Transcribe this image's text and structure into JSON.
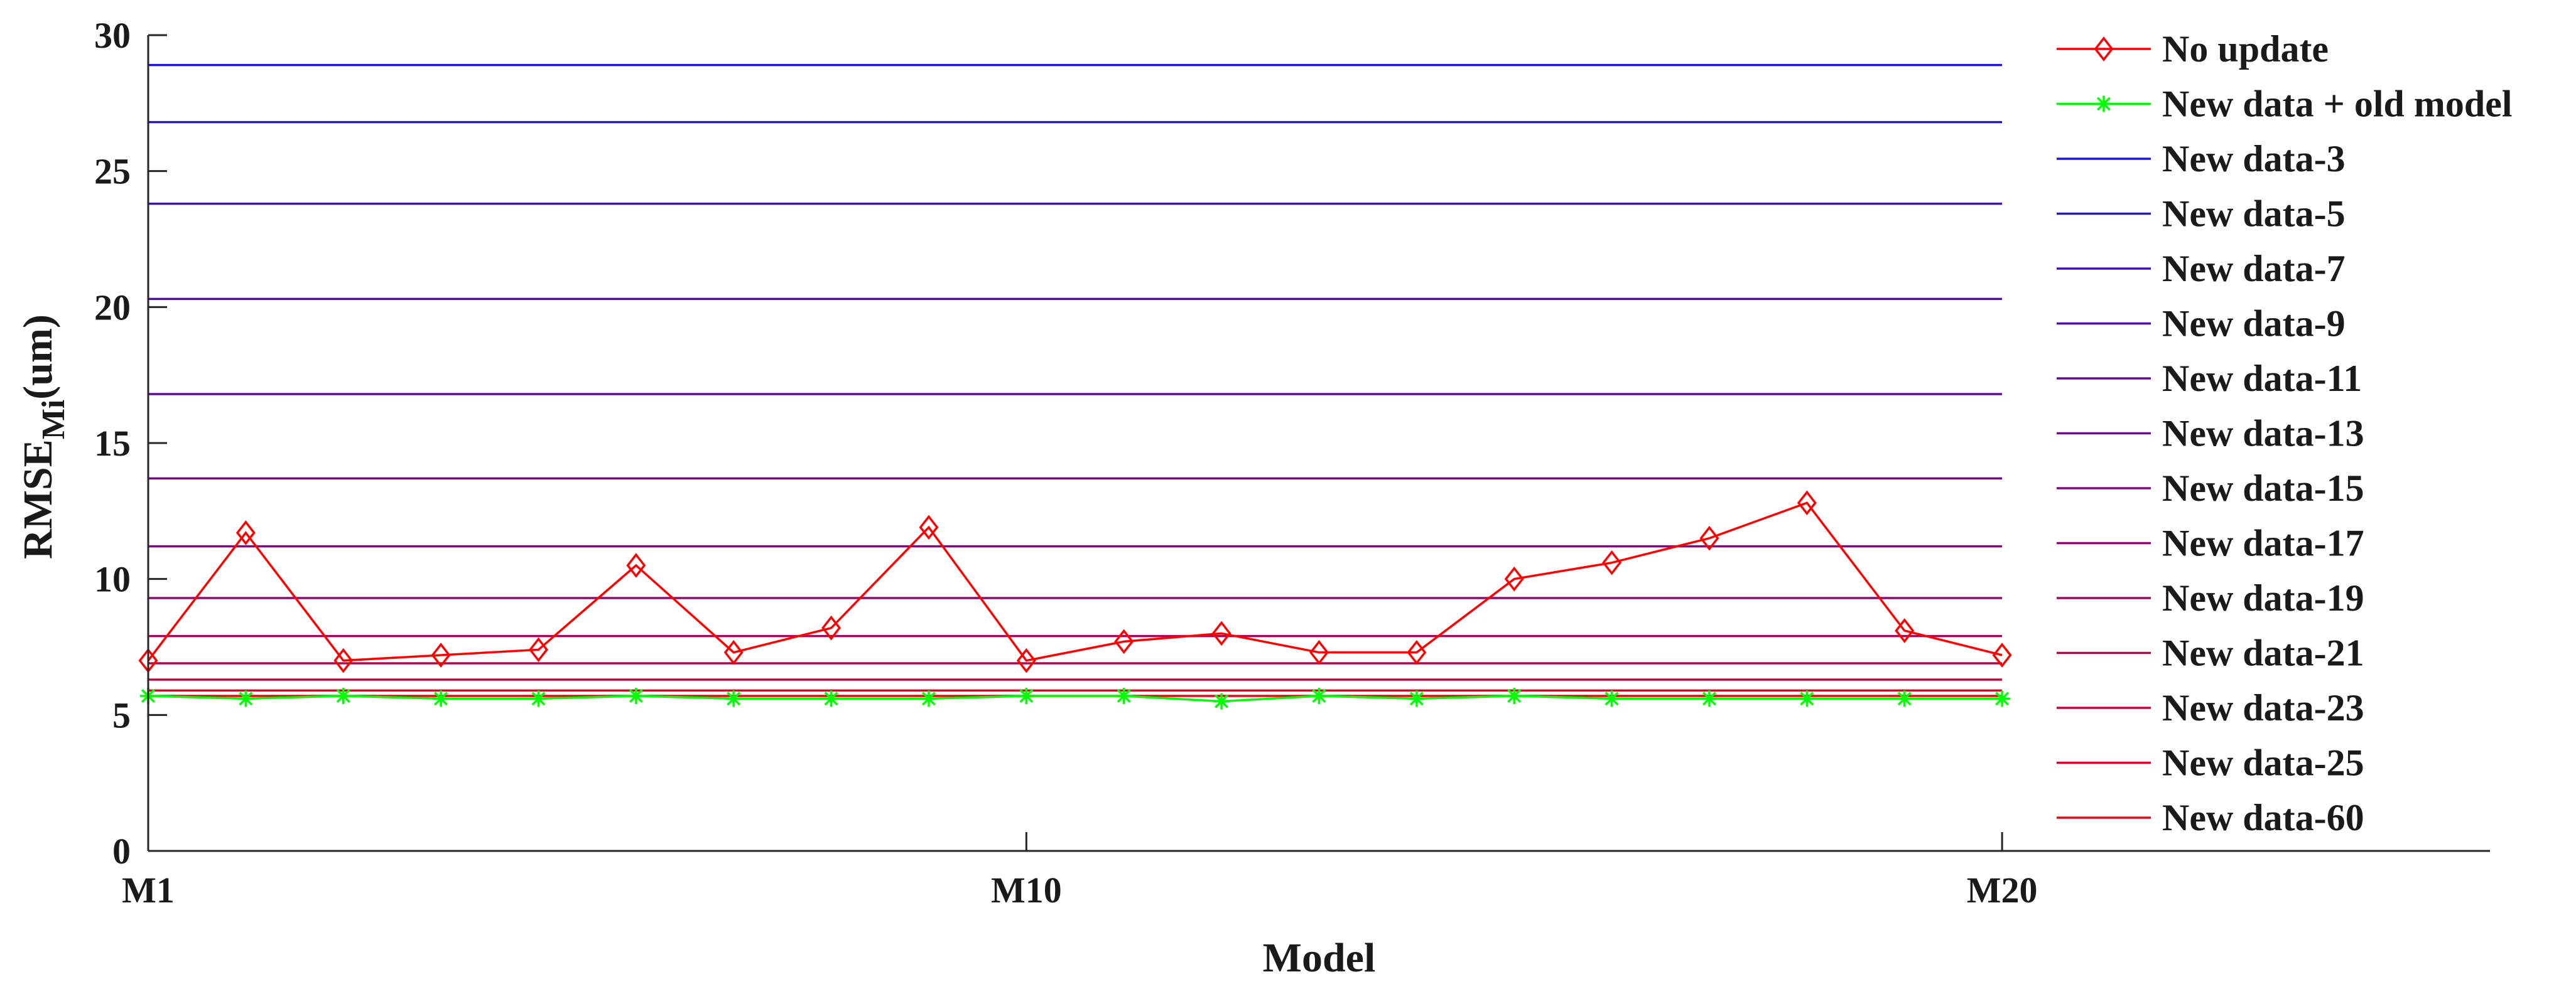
{
  "chart_data": {
    "type": "line",
    "xlabel": "Model",
    "ylabel": "RMSE",
    "ylabel_sub": "Mi",
    "ylabel_unit": "(um)",
    "xlim": [
      1,
      25
    ],
    "ylim": [
      0,
      30
    ],
    "x_ticks": [
      {
        "x": 1,
        "label": "M1"
      },
      {
        "x": 10,
        "label": "M10"
      },
      {
        "x": 20,
        "label": "M20"
      }
    ],
    "y_ticks": [
      0,
      5,
      10,
      15,
      20,
      25,
      30
    ],
    "x": [
      1,
      2,
      3,
      4,
      5,
      6,
      7,
      8,
      9,
      10,
      11,
      12,
      13,
      14,
      15,
      16,
      17,
      18,
      19,
      20
    ],
    "series": [
      {
        "name": "No update",
        "kind": "line-marker",
        "marker": "diamond",
        "color": "#ff0000",
        "values": [
          7.0,
          11.7,
          7.0,
          7.2,
          7.4,
          10.5,
          7.3,
          8.2,
          11.9,
          7.0,
          7.7,
          8.0,
          7.3,
          7.3,
          10.0,
          10.6,
          11.5,
          12.8,
          8.1,
          7.2
        ]
      },
      {
        "name": "New data + old model",
        "kind": "line-marker",
        "marker": "asterisk",
        "color": "#00ff00",
        "values": [
          5.7,
          5.6,
          5.7,
          5.6,
          5.6,
          5.7,
          5.6,
          5.6,
          5.6,
          5.7,
          5.7,
          5.5,
          5.7,
          5.6,
          5.7,
          5.6,
          5.6,
          5.6,
          5.6,
          5.6
        ]
      },
      {
        "name": "New data-3",
        "kind": "hline",
        "color": "#1a14d6",
        "value": 28.9
      },
      {
        "name": "New data-5",
        "kind": "hline",
        "color": "#2a12c8",
        "value": 26.8
      },
      {
        "name": "New data-7",
        "kind": "hline",
        "color": "#3b10ba",
        "value": 23.8
      },
      {
        "name": "New data-9",
        "kind": "hline",
        "color": "#4d0eab",
        "value": 20.3
      },
      {
        "name": "New data-11",
        "kind": "hline",
        "color": "#5e0c9c",
        "value": 16.8
      },
      {
        "name": "New data-13",
        "kind": "hline",
        "color": "#700a8d",
        "value": 13.7
      },
      {
        "name": "New data-15",
        "kind": "hline",
        "color": "#82087d",
        "value": 11.2
      },
      {
        "name": "New data-17",
        "kind": "hline",
        "color": "#93066d",
        "value": 9.3
      },
      {
        "name": "New data-19",
        "kind": "hline",
        "color": "#a5055d",
        "value": 7.9
      },
      {
        "name": "New data-21",
        "kind": "hline",
        "color": "#b7044c",
        "value": 6.9
      },
      {
        "name": "New data-23",
        "kind": "hline",
        "color": "#c9033a",
        "value": 6.3
      },
      {
        "name": "New data-25",
        "kind": "hline",
        "color": "#db0228",
        "value": 5.9
      },
      {
        "name": "New data-60",
        "kind": "hline",
        "color": "#ee0114",
        "value": 5.7
      }
    ],
    "legend": {
      "placement": "right",
      "boxed": false
    },
    "grid": false
  }
}
